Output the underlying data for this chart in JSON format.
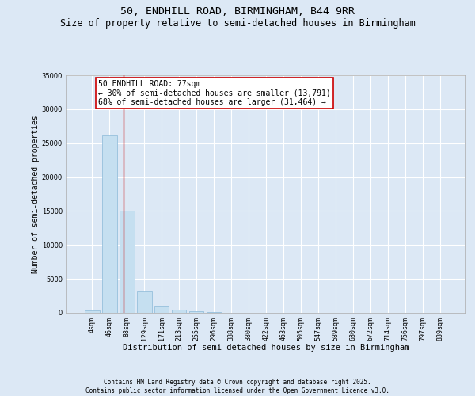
{
  "title_line1": "50, ENDHILL ROAD, BIRMINGHAM, B44 9RR",
  "title_line2": "Size of property relative to semi-detached houses in Birmingham",
  "xlabel": "Distribution of semi-detached houses by size in Birmingham",
  "ylabel": "Number of semi-detached properties",
  "categories": [
    "4sqm",
    "46sqm",
    "88sqm",
    "129sqm",
    "171sqm",
    "213sqm",
    "255sqm",
    "296sqm",
    "338sqm",
    "380sqm",
    "422sqm",
    "463sqm",
    "505sqm",
    "547sqm",
    "589sqm",
    "630sqm",
    "672sqm",
    "714sqm",
    "756sqm",
    "797sqm",
    "839sqm"
  ],
  "values": [
    350,
    26100,
    15000,
    3200,
    1000,
    500,
    200,
    60,
    20,
    10,
    5,
    3,
    2,
    1,
    1,
    1,
    0,
    0,
    0,
    0,
    0
  ],
  "bar_color": "#c5dff0",
  "bar_edge_color": "#8ab8d8",
  "vline_x": 1.82,
  "vline_color": "#cc0000",
  "annotation_text": "50 ENDHILL ROAD: 77sqm\n← 30% of semi-detached houses are smaller (13,791)\n68% of semi-detached houses are larger (31,464) →",
  "annotation_box_color": "#ffffff",
  "annotation_box_edge": "#cc0000",
  "ylim": [
    0,
    35000
  ],
  "yticks": [
    0,
    5000,
    10000,
    15000,
    20000,
    25000,
    30000,
    35000
  ],
  "background_color": "#dce8f5",
  "plot_bg_color": "#dce8f5",
  "footer_line1": "Contains HM Land Registry data © Crown copyright and database right 2025.",
  "footer_line2": "Contains public sector information licensed under the Open Government Licence v3.0.",
  "title_fontsize": 9.5,
  "subtitle_fontsize": 8.5,
  "axis_label_fontsize": 7.5,
  "tick_fontsize": 6,
  "annotation_fontsize": 7,
  "footer_fontsize": 5.5,
  "ylabel_fontsize": 7
}
